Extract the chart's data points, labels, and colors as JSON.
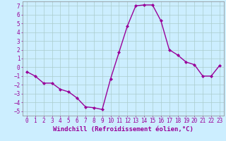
{
  "x": [
    0,
    1,
    2,
    3,
    4,
    5,
    6,
    7,
    8,
    9,
    10,
    11,
    12,
    13,
    14,
    15,
    16,
    17,
    18,
    19,
    20,
    21,
    22,
    23
  ],
  "y": [
    -0.5,
    -1.0,
    -1.8,
    -1.8,
    -2.5,
    -2.8,
    -3.5,
    -4.5,
    -4.6,
    -4.8,
    -1.3,
    1.7,
    4.7,
    7.0,
    7.1,
    7.1,
    5.3,
    2.0,
    1.4,
    0.6,
    0.3,
    -1.0,
    -1.0,
    0.2
  ],
  "line_color": "#990099",
  "marker": "D",
  "marker_size": 2,
  "linewidth": 1.0,
  "xlabel": "Windchill (Refroidissement éolien,°C)",
  "xlabel_fontsize": 6.5,
  "xlim": [
    -0.5,
    23.5
  ],
  "ylim": [
    -5.5,
    7.5
  ],
  "yticks": [
    -5,
    -4,
    -3,
    -2,
    -1,
    0,
    1,
    2,
    3,
    4,
    5,
    6,
    7
  ],
  "xticks": [
    0,
    1,
    2,
    3,
    4,
    5,
    6,
    7,
    8,
    9,
    10,
    11,
    12,
    13,
    14,
    15,
    16,
    17,
    18,
    19,
    20,
    21,
    22,
    23
  ],
  "background_color": "#cceeff",
  "grid_color": "#aacccc",
  "tick_fontsize": 5.5,
  "tick_color": "#990099",
  "label_color": "#990099",
  "spine_color": "#888888"
}
